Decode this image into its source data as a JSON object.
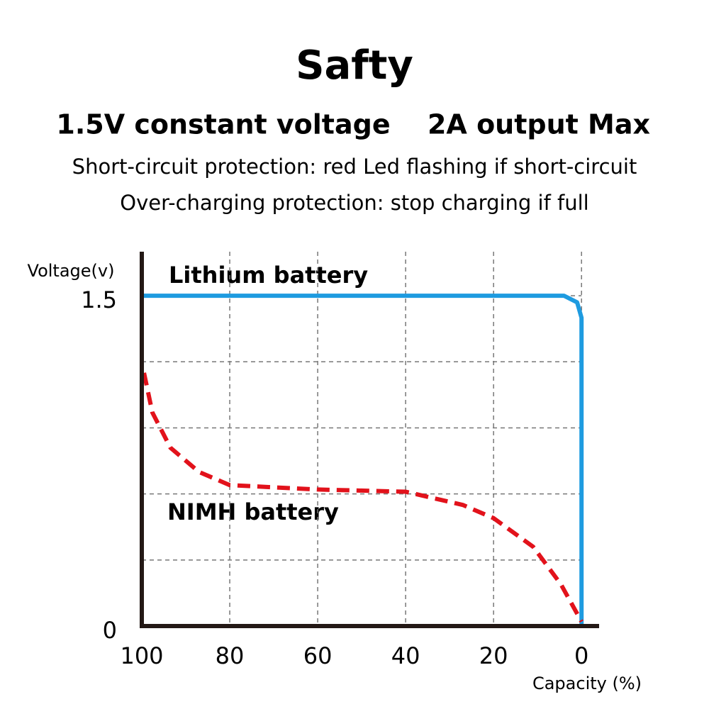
{
  "chart_data": {
    "type": "line",
    "title": "Safty",
    "subtitle": [
      "1.5V constant voltage",
      "2A output Max"
    ],
    "notes": [
      "Short-circuit protection: red Led flashing if short-circuit",
      "Over-charging protection: stop charging if full"
    ],
    "ylabel": "Voltage(v)",
    "xlabel": "Capacity (%)",
    "xlim": [
      100,
      -4
    ],
    "xticks": [
      100,
      80,
      60,
      40,
      20,
      0
    ],
    "ylim": [
      0,
      1.7
    ],
    "yticks": [
      0,
      1.5
    ],
    "ygrid": [
      0.3,
      0.6,
      0.9,
      1.2,
      1.5
    ],
    "grid": true,
    "series": [
      {
        "name": "Lithium battery",
        "color": "#1e9be0",
        "dashed": false,
        "x": [
          100,
          4,
          1,
          0,
          0
        ],
        "values": [
          1.5,
          1.5,
          1.47,
          1.4,
          0
        ]
      },
      {
        "name": "NIMH battery",
        "color": "#e2121b",
        "dashed": true,
        "x": [
          99.5,
          97.6,
          93.5,
          87,
          80,
          60,
          40,
          27,
          20,
          11,
          4.7,
          0
        ],
        "values": [
          1.15,
          0.97,
          0.81,
          0.7,
          0.64,
          0.62,
          0.61,
          0.55,
          0.49,
          0.36,
          0.19,
          0.02
        ]
      }
    ]
  }
}
